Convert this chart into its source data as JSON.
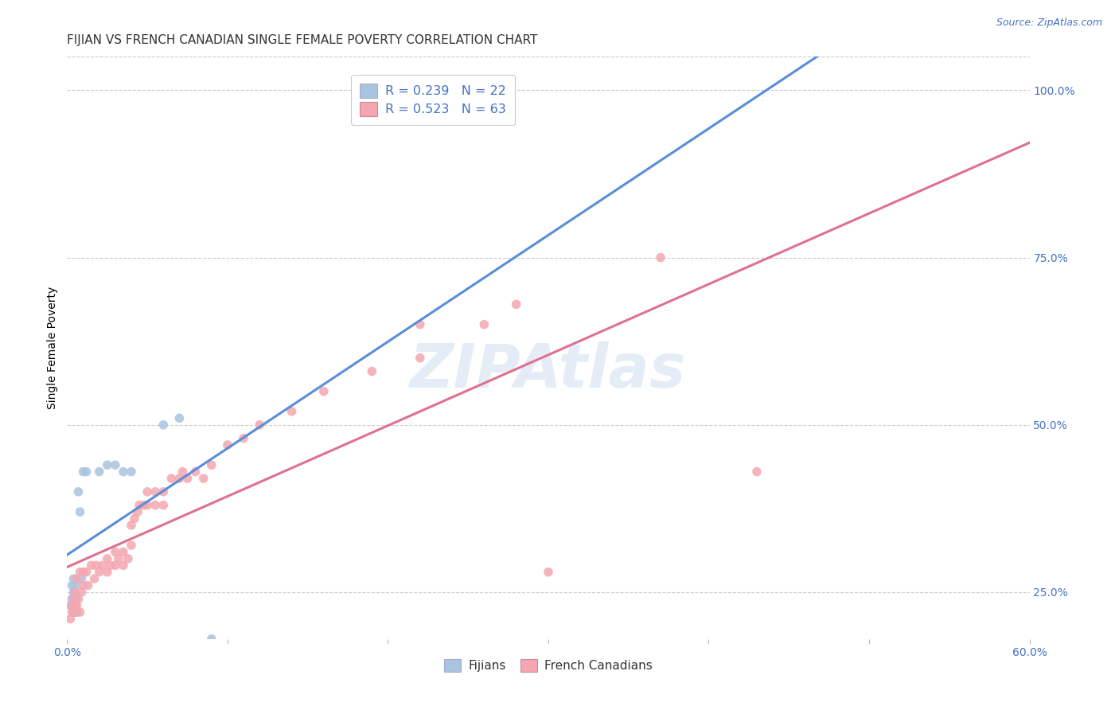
{
  "title": "FIJIAN VS FRENCH CANADIAN SINGLE FEMALE POVERTY CORRELATION CHART",
  "source": "Source: ZipAtlas.com",
  "ylabel": "Single Female Poverty",
  "xlim": [
    0.0,
    0.6
  ],
  "ylim": [
    0.18,
    1.05
  ],
  "y_ticks_right": [
    0.25,
    0.5,
    0.75,
    1.0
  ],
  "y_tick_labels_right": [
    "25.0%",
    "50.0%",
    "75.0%",
    "100.0%"
  ],
  "fijian_color": "#a8c4e0",
  "french_color": "#f4a7b0",
  "fijian_line_color": "#5b8dd9",
  "french_line_color": "#e07090",
  "dashed_line_color": "#9bbce0",
  "fijian_R": 0.239,
  "fijian_N": 22,
  "french_R": 0.523,
  "french_N": 63,
  "watermark": "ZIPAtlas",
  "fijian_x": [
    0.002,
    0.003,
    0.003,
    0.004,
    0.004,
    0.005,
    0.005,
    0.006,
    0.006,
    0.007,
    0.008,
    0.009,
    0.01,
    0.012,
    0.02,
    0.025,
    0.03,
    0.035,
    0.04,
    0.06,
    0.07,
    0.09
  ],
  "fijian_y": [
    0.23,
    0.24,
    0.26,
    0.25,
    0.27,
    0.22,
    0.26,
    0.22,
    0.24,
    0.4,
    0.37,
    0.27,
    0.43,
    0.43,
    0.43,
    0.44,
    0.44,
    0.43,
    0.43,
    0.5,
    0.51,
    0.18
  ],
  "french_x": [
    0.002,
    0.003,
    0.003,
    0.004,
    0.004,
    0.005,
    0.005,
    0.006,
    0.006,
    0.007,
    0.008,
    0.008,
    0.009,
    0.01,
    0.01,
    0.012,
    0.013,
    0.015,
    0.017,
    0.018,
    0.02,
    0.022,
    0.025,
    0.025,
    0.027,
    0.03,
    0.03,
    0.032,
    0.035,
    0.035,
    0.038,
    0.04,
    0.04,
    0.042,
    0.044,
    0.045,
    0.048,
    0.05,
    0.05,
    0.055,
    0.055,
    0.06,
    0.06,
    0.065,
    0.07,
    0.072,
    0.075,
    0.08,
    0.085,
    0.09,
    0.1,
    0.11,
    0.12,
    0.14,
    0.16,
    0.19,
    0.22,
    0.26,
    0.28,
    0.3,
    0.37,
    0.43,
    0.22
  ],
  "french_y": [
    0.21,
    0.22,
    0.23,
    0.22,
    0.24,
    0.23,
    0.25,
    0.23,
    0.27,
    0.24,
    0.22,
    0.28,
    0.25,
    0.26,
    0.28,
    0.28,
    0.26,
    0.29,
    0.27,
    0.29,
    0.28,
    0.29,
    0.28,
    0.3,
    0.29,
    0.29,
    0.31,
    0.3,
    0.29,
    0.31,
    0.3,
    0.32,
    0.35,
    0.36,
    0.37,
    0.38,
    0.38,
    0.38,
    0.4,
    0.38,
    0.4,
    0.38,
    0.4,
    0.42,
    0.42,
    0.43,
    0.42,
    0.43,
    0.42,
    0.44,
    0.47,
    0.48,
    0.5,
    0.52,
    0.55,
    0.58,
    0.6,
    0.65,
    0.68,
    0.28,
    0.75,
    0.43,
    0.65
  ],
  "background_color": "#ffffff",
  "grid_color": "#cccccc",
  "title_fontsize": 11,
  "axis_label_fontsize": 10,
  "tick_fontsize": 10,
  "legend_text_color": "#4472c4"
}
